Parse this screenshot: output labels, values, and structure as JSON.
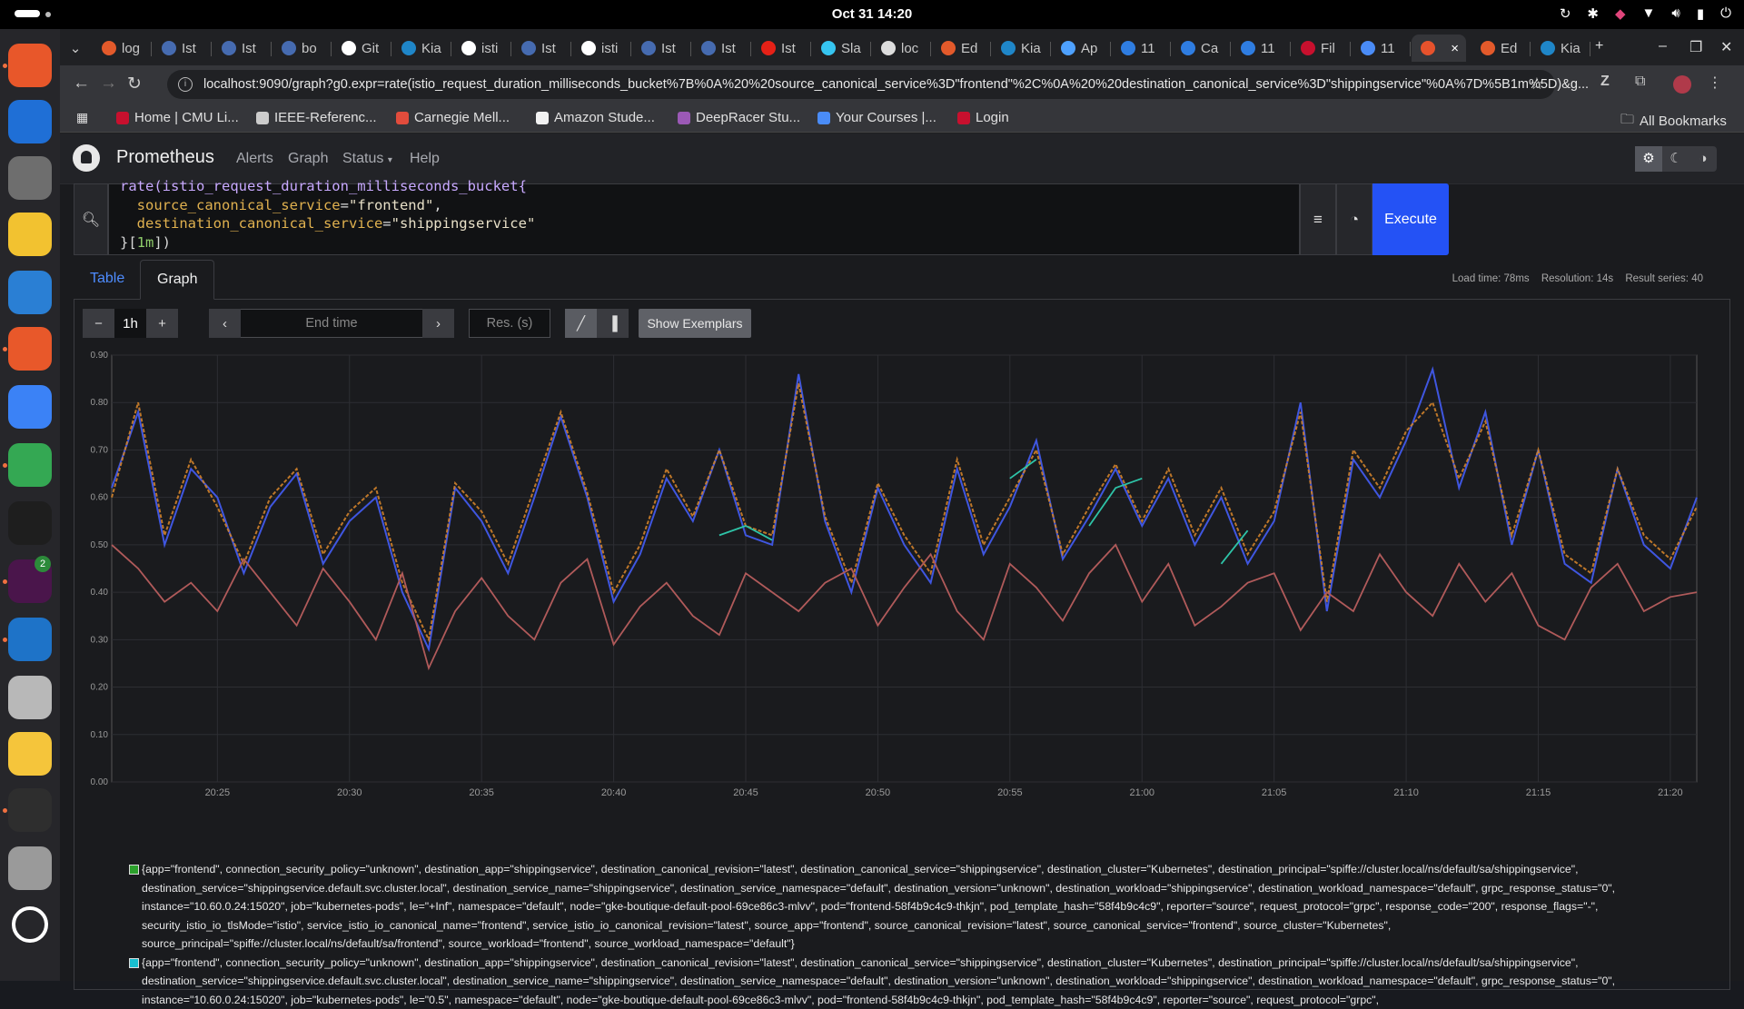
{
  "system": {
    "clock": "Oct 31  14:20"
  },
  "dock": {
    "apps": [
      {
        "icon": "firefox-icon",
        "color": "#e8572a"
      },
      {
        "icon": "thunderbird-icon",
        "color": "#1f6fd6"
      },
      {
        "icon": "files-icon",
        "color": "#6e6e6e"
      },
      {
        "icon": "rhythmbox-icon",
        "color": "#f2c230"
      },
      {
        "icon": "libreoffice-writer-icon",
        "color": "#2a7fd4"
      },
      {
        "icon": "app-center-icon",
        "color": "#e8582a"
      },
      {
        "icon": "help-icon",
        "color": "#3b82f6"
      },
      {
        "icon": "chrome-icon",
        "color": "#34a853"
      },
      {
        "icon": "pycharm-icon",
        "color": "#1e1e1e"
      },
      {
        "icon": "slack-icon",
        "color": "#4a154b",
        "badge": "2"
      },
      {
        "icon": "vscode-icon",
        "color": "#1e73c8"
      },
      {
        "icon": "document-viewer-icon",
        "color": "#b8b8b8"
      },
      {
        "icon": "text-editor-icon",
        "color": "#f5c53b"
      },
      {
        "icon": "terminal-icon",
        "color": "#2e2e2e"
      },
      {
        "icon": "trash-icon",
        "color": "#9a9a9a"
      },
      {
        "icon": "ubuntu-apps-icon",
        "color": "#ffffff"
      }
    ]
  },
  "browser": {
    "tabs": [
      {
        "label": "log",
        "icon": "grafana-icon",
        "color": "#e35a2b"
      },
      {
        "label": "Ist",
        "icon": "istio-icon",
        "color": "#466bb0"
      },
      {
        "label": "Ist",
        "icon": "istio-icon",
        "color": "#466bb0"
      },
      {
        "label": "bo",
        "icon": "hexagon-icon",
        "color": "#466bb0"
      },
      {
        "label": "Git",
        "icon": "github-icon",
        "color": "#ffffff"
      },
      {
        "label": "Kia",
        "icon": "kiali-icon",
        "color": "#1f86c8"
      },
      {
        "label": "isti",
        "icon": "github-icon",
        "color": "#ffffff"
      },
      {
        "label": "Ist",
        "icon": "istio-icon",
        "color": "#466bb0"
      },
      {
        "label": "isti",
        "icon": "github-icon",
        "color": "#ffffff"
      },
      {
        "label": "Ist",
        "icon": "istio-icon",
        "color": "#466bb0"
      },
      {
        "label": "Ist",
        "icon": "istio-icon",
        "color": "#466bb0"
      },
      {
        "label": "Ist",
        "icon": "youtube-icon",
        "color": "#e62117"
      },
      {
        "label": "Sla",
        "icon": "slack-icon",
        "color": "#36c5f0"
      },
      {
        "label": "loc",
        "icon": "prometheus-icon",
        "color": "#dddddd"
      },
      {
        "label": "Ed",
        "icon": "gear-icon",
        "color": "#e35a2b"
      },
      {
        "label": "Kia",
        "icon": "kiali-icon",
        "color": "#1f86c8"
      },
      {
        "label": "Ap",
        "icon": "compass-icon",
        "color": "#4ea1ff"
      },
      {
        "label": "11",
        "icon": "p-icon",
        "color": "#2f7de1"
      },
      {
        "label": "Ca",
        "icon": "calendar-icon",
        "color": "#2f7de1"
      },
      {
        "label": "11",
        "icon": "p-icon",
        "color": "#2f7de1"
      },
      {
        "label": "Fil",
        "icon": "c-icon",
        "color": "#c8102e"
      },
      {
        "label": "11",
        "icon": "bar-chart-icon",
        "color": "#4a8cf7"
      },
      {
        "label": "",
        "icon": "prometheus-icon",
        "color": "#e6522c",
        "active": true
      },
      {
        "label": "Ed",
        "icon": "gear-icon",
        "color": "#e35a2b"
      },
      {
        "label": "Kia",
        "icon": "kiali-icon",
        "color": "#1f86c8"
      }
    ],
    "url": "localhost:9090/graph?g0.expr=rate(istio_request_duration_milliseconds_bucket%7B%0A%20%20source_canonical_service%3D\"frontend\"%2C%0A%20%20destination_canonical_service%3D\"shippingservice\"%0A%7D%5B1m%5D)&g...",
    "bookmarks": [
      {
        "label": "Home | CMU Li...",
        "color": "#c8102e"
      },
      {
        "label": "IEEE-Referenc...",
        "color": "#cccccc"
      },
      {
        "label": "Carnegie Mell...",
        "color": "#e24c3c"
      },
      {
        "label": "Amazon Stude...",
        "color": "#f2f2f2"
      },
      {
        "label": "DeepRacer Stu...",
        "color": "#9b59b6"
      },
      {
        "label": "Your Courses |...",
        "color": "#4a8cf7"
      },
      {
        "label": "Login",
        "color": "#c8102e"
      }
    ],
    "all_bookmarks": "All Bookmarks"
  },
  "prometheus": {
    "brand": "Prometheus",
    "nav": [
      "Alerts",
      "Graph",
      "Status",
      "Help"
    ],
    "query": {
      "line0": "rate(istio_request_duration_milliseconds_bucket{",
      "label1": "source_canonical_service",
      "value1": "\"frontend\"",
      "label2": "destination_canonical_service",
      "value2": "\"shippingservice\"",
      "range": "1m"
    },
    "execute": "Execute",
    "tabs": {
      "table": "Table",
      "graph": "Graph"
    },
    "stats": {
      "load": "Load time: 78ms",
      "resolution": "Resolution: 14s",
      "series": "Result series: 40"
    },
    "controls": {
      "range": "1h",
      "end_time_placeholder": "End time",
      "res_placeholder": "Res. (s)",
      "show_exemplars": "Show Exemplars"
    },
    "legend": [
      {
        "color": "#2ca02c",
        "text": "{app=\"frontend\", connection_security_policy=\"unknown\", destination_app=\"shippingservice\", destination_canonical_revision=\"latest\", destination_canonical_service=\"shippingservice\", destination_cluster=\"Kubernetes\", destination_principal=\"spiffe://cluster.local/ns/default/sa/shippingservice\", destination_service=\"shippingservice.default.svc.cluster.local\", destination_service_name=\"shippingservice\", destination_service_namespace=\"default\", destination_version=\"unknown\", destination_workload=\"shippingservice\", destination_workload_namespace=\"default\", grpc_response_status=\"0\", instance=\"10.60.0.24:15020\", job=\"kubernetes-pods\", le=\"+Inf\", namespace=\"default\", node=\"gke-boutique-default-pool-69ce86c3-mlvv\", pod=\"frontend-58f4b9c4c9-thkjn\", pod_template_hash=\"58f4b9c4c9\", reporter=\"source\", request_protocol=\"grpc\", response_code=\"200\", response_flags=\"-\", security_istio_io_tlsMode=\"istio\", service_istio_io_canonical_name=\"frontend\", service_istio_io_canonical_revision=\"latest\", source_app=\"frontend\", source_canonical_revision=\"latest\", source_canonical_service=\"frontend\", source_cluster=\"Kubernetes\", source_principal=\"spiffe://cluster.local/ns/default/sa/frontend\", source_workload=\"frontend\", source_workload_namespace=\"default\"}"
      },
      {
        "color": "#17becf",
        "text": "{app=\"frontend\", connection_security_policy=\"unknown\", destination_app=\"shippingservice\", destination_canonical_revision=\"latest\", destination_canonical_service=\"shippingservice\", destination_cluster=\"Kubernetes\", destination_principal=\"spiffe://cluster.local/ns/default/sa/shippingservice\", destination_service=\"shippingservice.default.svc.cluster.local\", destination_service_name=\"shippingservice\", destination_service_namespace=\"default\", destination_version=\"unknown\", destination_workload=\"shippingservice\", destination_workload_namespace=\"default\", grpc_response_status=\"0\", instance=\"10.60.0.24:15020\", job=\"kubernetes-pods\", le=\"0.5\", namespace=\"default\", node=\"gke-boutique-default-pool-69ce86c3-mlvv\", pod=\"frontend-58f4b9c4c9-thkjn\", pod_template_hash=\"58f4b9c4c9\", reporter=\"source\", request_protocol=\"grpc\","
      }
    ]
  },
  "chart_data": {
    "type": "line",
    "title": "",
    "xlabel": "",
    "ylabel": "",
    "ylim": [
      0,
      0.9
    ],
    "yticks": [
      "0.00",
      "0.10",
      "0.20",
      "0.30",
      "0.40",
      "0.50",
      "0.60",
      "0.70",
      "0.80",
      "0.90"
    ],
    "xticks": [
      "20:25",
      "20:30",
      "20:35",
      "20:40",
      "20:45",
      "20:50",
      "20:55",
      "21:00",
      "21:05",
      "21:10",
      "21:15",
      "21:20"
    ],
    "xlim": [
      "20:21",
      "21:21"
    ],
    "grid": true,
    "series": [
      {
        "color": "#3f56e0",
        "x": [
          "20:21",
          "20:22",
          "20:23",
          "20:24",
          "20:25",
          "20:26",
          "20:27",
          "20:28",
          "20:29",
          "20:30",
          "20:31",
          "20:32",
          "20:33",
          "20:34",
          "20:35",
          "20:36",
          "20:37",
          "20:38",
          "20:39",
          "20:40",
          "20:41",
          "20:42",
          "20:43",
          "20:44",
          "20:45",
          "20:46",
          "20:47",
          "20:48",
          "20:49",
          "20:50",
          "20:51",
          "20:52",
          "20:53",
          "20:54",
          "20:55",
          "20:56",
          "20:57",
          "20:58",
          "20:59",
          "21:00",
          "21:01",
          "21:02",
          "21:03",
          "21:04",
          "21:05",
          "21:06",
          "21:07",
          "21:08",
          "21:09",
          "21:10",
          "21:11",
          "21:12",
          "21:13",
          "21:14",
          "21:15",
          "21:16",
          "21:17",
          "21:18",
          "21:19",
          "21:20",
          "21:21"
        ],
        "values": [
          0.62,
          0.78,
          0.5,
          0.66,
          0.6,
          0.44,
          0.58,
          0.65,
          0.46,
          0.55,
          0.6,
          0.4,
          0.28,
          0.62,
          0.55,
          0.44,
          0.6,
          0.77,
          0.6,
          0.38,
          0.48,
          0.64,
          0.55,
          0.7,
          0.52,
          0.5,
          0.86,
          0.55,
          0.4,
          0.62,
          0.5,
          0.42,
          0.66,
          0.48,
          0.58,
          0.72,
          0.47,
          0.56,
          0.66,
          0.54,
          0.64,
          0.5,
          0.6,
          0.46,
          0.55,
          0.8,
          0.36,
          0.68,
          0.6,
          0.72,
          0.87,
          0.62,
          0.78,
          0.5,
          0.7,
          0.46,
          0.42,
          0.66,
          0.5,
          0.45,
          0.6
        ]
      },
      {
        "color": "#d0822a",
        "x": [
          "20:21",
          "20:22",
          "20:23",
          "20:24",
          "20:25",
          "20:26",
          "20:27",
          "20:28",
          "20:29",
          "20:30",
          "20:31",
          "20:32",
          "20:33",
          "20:34",
          "20:35",
          "20:36",
          "20:37",
          "20:38",
          "20:39",
          "20:40",
          "20:41",
          "20:42",
          "20:43",
          "20:44",
          "20:45",
          "20:46",
          "20:47",
          "20:48",
          "20:49",
          "20:50",
          "20:51",
          "20:52",
          "20:53",
          "20:54",
          "20:55",
          "20:56",
          "20:57",
          "20:58",
          "20:59",
          "21:00",
          "21:01",
          "21:02",
          "21:03",
          "21:04",
          "21:05",
          "21:06",
          "21:07",
          "21:08",
          "21:09",
          "21:10",
          "21:11",
          "21:12",
          "21:13",
          "21:14",
          "21:15",
          "21:16",
          "21:17",
          "21:18",
          "21:19",
          "21:20",
          "21:21"
        ],
        "values": [
          0.6,
          0.8,
          0.52,
          0.68,
          0.58,
          0.46,
          0.6,
          0.66,
          0.48,
          0.57,
          0.62,
          0.42,
          0.3,
          0.63,
          0.57,
          0.46,
          0.62,
          0.78,
          0.61,
          0.4,
          0.5,
          0.66,
          0.56,
          0.7,
          0.54,
          0.52,
          0.84,
          0.56,
          0.42,
          0.63,
          0.52,
          0.44,
          0.68,
          0.5,
          0.6,
          0.7,
          0.48,
          0.58,
          0.67,
          0.55,
          0.66,
          0.52,
          0.62,
          0.48,
          0.57,
          0.78,
          0.38,
          0.7,
          0.62,
          0.74,
          0.8,
          0.64,
          0.76,
          0.52,
          0.7,
          0.48,
          0.44,
          0.66,
          0.52,
          0.47,
          0.58
        ]
      },
      {
        "color": "#b05a5a",
        "x": [
          "20:21",
          "20:22",
          "20:23",
          "20:24",
          "20:25",
          "20:26",
          "20:27",
          "20:28",
          "20:29",
          "20:30",
          "20:31",
          "20:32",
          "20:33",
          "20:34",
          "20:35",
          "20:36",
          "20:37",
          "20:38",
          "20:39",
          "20:40",
          "20:41",
          "20:42",
          "20:43",
          "20:44",
          "20:45",
          "20:46",
          "20:47",
          "20:48",
          "20:49",
          "20:50",
          "20:51",
          "20:52",
          "20:53",
          "20:54",
          "20:55",
          "20:56",
          "20:57",
          "20:58",
          "20:59",
          "21:00",
          "21:01",
          "21:02",
          "21:03",
          "21:04",
          "21:05",
          "21:06",
          "21:07",
          "21:08",
          "21:09",
          "21:10",
          "21:11",
          "21:12",
          "21:13",
          "21:14",
          "21:15",
          "21:16",
          "21:17",
          "21:18",
          "21:19",
          "21:20",
          "21:21"
        ],
        "values": [
          0.5,
          0.45,
          0.38,
          0.42,
          0.36,
          0.47,
          0.4,
          0.33,
          0.45,
          0.38,
          0.3,
          0.44,
          0.24,
          0.36,
          0.43,
          0.35,
          0.3,
          0.42,
          0.47,
          0.29,
          0.37,
          0.42,
          0.35,
          0.31,
          0.44,
          0.4,
          0.36,
          0.42,
          0.45,
          0.33,
          0.41,
          0.48,
          0.36,
          0.3,
          0.46,
          0.41,
          0.34,
          0.44,
          0.5,
          0.38,
          0.46,
          0.33,
          0.37,
          0.42,
          0.44,
          0.32,
          0.4,
          0.36,
          0.48,
          0.4,
          0.35,
          0.46,
          0.38,
          0.44,
          0.33,
          0.3,
          0.41,
          0.46,
          0.36,
          0.39,
          0.4
        ]
      },
      {
        "color": "#2ec4a8",
        "x": [
          "20:44",
          "20:45",
          "20:46"
        ],
        "values": [
          0.52,
          0.54,
          0.51
        ]
      },
      {
        "color": "#2ec4a8",
        "x": [
          "20:55",
          "20:56"
        ],
        "values": [
          0.64,
          0.68
        ]
      },
      {
        "color": "#2ec4a8",
        "x": [
          "20:58",
          "20:59",
          "21:00"
        ],
        "values": [
          0.54,
          0.62,
          0.64
        ]
      },
      {
        "color": "#2ec4a8",
        "x": [
          "21:03",
          "21:04"
        ],
        "values": [
          0.46,
          0.53
        ]
      }
    ]
  }
}
